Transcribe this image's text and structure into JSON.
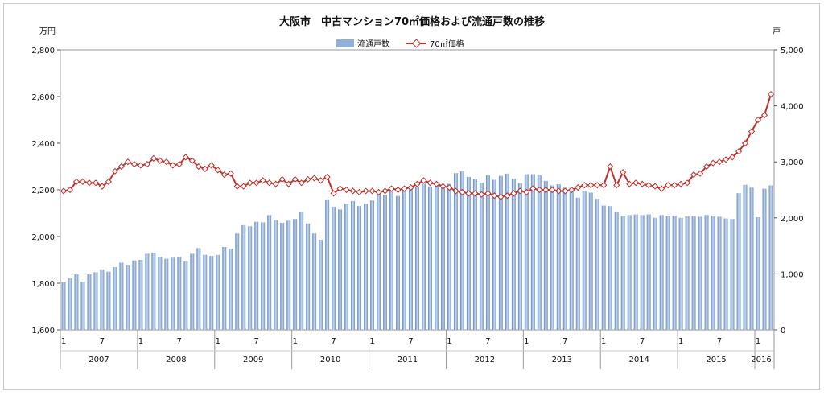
{
  "chart_data": {
    "type": "bar+line",
    "title": "大阪市　中古マンション70㎡価格および流通戸数の推移",
    "left_axis": {
      "unit": "万円",
      "min": 1600,
      "max": 2800,
      "ticks": [
        "1,600",
        "1,800",
        "2,000",
        "2,200",
        "2,400",
        "2,600",
        "2,800"
      ]
    },
    "right_axis": {
      "unit": "戸",
      "min": 0,
      "max": 5000,
      "ticks": [
        "0",
        "1,000",
        "2,000",
        "3,000",
        "4,000",
        "5,000"
      ]
    },
    "legend": {
      "bar_label": "流通戸数",
      "line_label": "70㎡価格",
      "placement": "top-center"
    },
    "month_ticks": [
      "1",
      "7"
    ],
    "years": [
      {
        "label": "2007",
        "months": 12
      },
      {
        "label": "2008",
        "months": 12
      },
      {
        "label": "2009",
        "months": 12
      },
      {
        "label": "2010",
        "months": 12
      },
      {
        "label": "2011",
        "months": 12
      },
      {
        "label": "2012",
        "months": 12
      },
      {
        "label": "2013",
        "months": 12
      },
      {
        "label": "2014",
        "months": 12
      },
      {
        "label": "2015",
        "months": 12
      },
      {
        "label": "2016",
        "months": 2
      }
    ],
    "series": [
      {
        "name": "流通戸数",
        "axis": "right",
        "kind": "bar",
        "color": "#8fb0d8",
        "values": [
          850,
          920,
          990,
          860,
          990,
          1030,
          1080,
          1040,
          1120,
          1200,
          1150,
          1240,
          1250,
          1360,
          1380,
          1300,
          1270,
          1290,
          1300,
          1220,
          1360,
          1460,
          1340,
          1320,
          1340,
          1480,
          1450,
          1720,
          1870,
          1850,
          1930,
          1920,
          2050,
          1960,
          1910,
          1950,
          1980,
          2100,
          1900,
          1720,
          1610,
          2330,
          2200,
          2150,
          2250,
          2300,
          2210,
          2250,
          2310,
          2440,
          2410,
          2500,
          2390,
          2500,
          2510,
          2560,
          2610,
          2560,
          2600,
          2560,
          2610,
          2800,
          2830,
          2730,
          2690,
          2630,
          2760,
          2680,
          2750,
          2790,
          2700,
          2620,
          2780,
          2780,
          2760,
          2660,
          2580,
          2600,
          2540,
          2490,
          2360,
          2480,
          2450,
          2340,
          2220,
          2210,
          2100,
          2030,
          2050,
          2060,
          2050,
          2060,
          2000,
          2050,
          2030,
          2040,
          2000,
          2030,
          2030,
          2020,
          2050,
          2040,
          2020,
          1990,
          1980,
          2440,
          2590,
          2540,
          2010,
          2520,
          2580
        ]
      },
      {
        "name": "70㎡価格",
        "axis": "left",
        "kind": "line",
        "color": "#c0302b",
        "values": [
          2195,
          2200,
          2235,
          2235,
          2230,
          2230,
          2215,
          2235,
          2280,
          2300,
          2320,
          2310,
          2305,
          2310,
          2335,
          2325,
          2320,
          2305,
          2310,
          2340,
          2325,
          2300,
          2290,
          2305,
          2285,
          2265,
          2270,
          2215,
          2215,
          2230,
          2230,
          2240,
          2230,
          2225,
          2245,
          2225,
          2245,
          2230,
          2245,
          2250,
          2240,
          2255,
          2185,
          2205,
          2200,
          2195,
          2190,
          2195,
          2195,
          2190,
          2195,
          2205,
          2200,
          2205,
          2210,
          2225,
          2240,
          2230,
          2225,
          2215,
          2210,
          2195,
          2190,
          2185,
          2185,
          2180,
          2185,
          2175,
          2170,
          2175,
          2185,
          2195,
          2190,
          2205,
          2200,
          2200,
          2200,
          2195,
          2195,
          2200,
          2210,
          2220,
          2220,
          2220,
          2220,
          2300,
          2220,
          2275,
          2225,
          2230,
          2225,
          2220,
          2215,
          2205,
          2220,
          2220,
          2225,
          2230,
          2265,
          2270,
          2300,
          2315,
          2320,
          2330,
          2340,
          2365,
          2400,
          2450,
          2500,
          2520,
          2610
        ]
      }
    ]
  }
}
